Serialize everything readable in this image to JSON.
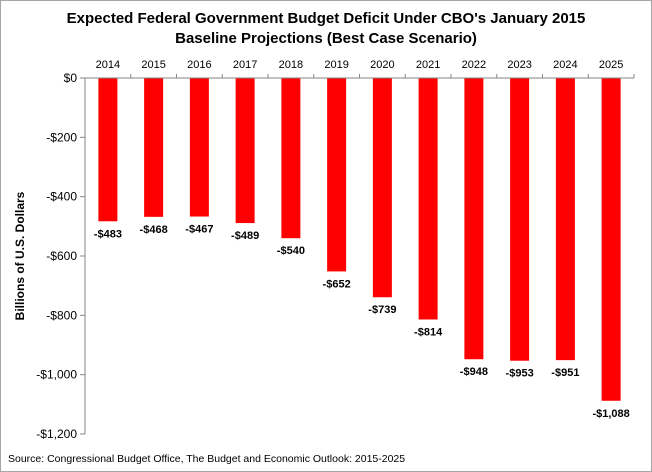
{
  "chart_data": {
    "type": "bar",
    "title": [
      "Expected Federal Government Budget Deficit Under CBO's January 2015",
      "Baseline Projections (Best Case Scenario)"
    ],
    "categories": [
      "2014",
      "2015",
      "2016",
      "2017",
      "2018",
      "2019",
      "2020",
      "2021",
      "2022",
      "2023",
      "2024",
      "2025"
    ],
    "values": [
      -483,
      -468,
      -467,
      -489,
      -540,
      -652,
      -739,
      -814,
      -948,
      -953,
      -951,
      -1088
    ],
    "data_labels": [
      "-$483",
      "-$468",
      "-$467",
      "-$489",
      "-$540",
      "-$652",
      "-$739",
      "-$814",
      "-$948",
      "-$953",
      "-$951",
      "-$1,088"
    ],
    "ylabel": "Billions of U.S. Dollars",
    "xlabel": "",
    "ylim": [
      -1200,
      0
    ],
    "yticks": [
      0,
      -200,
      -400,
      -600,
      -800,
      -1000,
      -1200
    ],
    "ytick_labels": [
      "$0",
      "-$200",
      "-$400",
      "-$600",
      "-$800",
      "-$1,000",
      "-$1,200"
    ],
    "bar_color": "#ff0000",
    "grid": false,
    "category_axis_position": "top"
  },
  "source": "Source: Congressional Budget Office, The Budget and Economic Outlook: 2015-2025"
}
